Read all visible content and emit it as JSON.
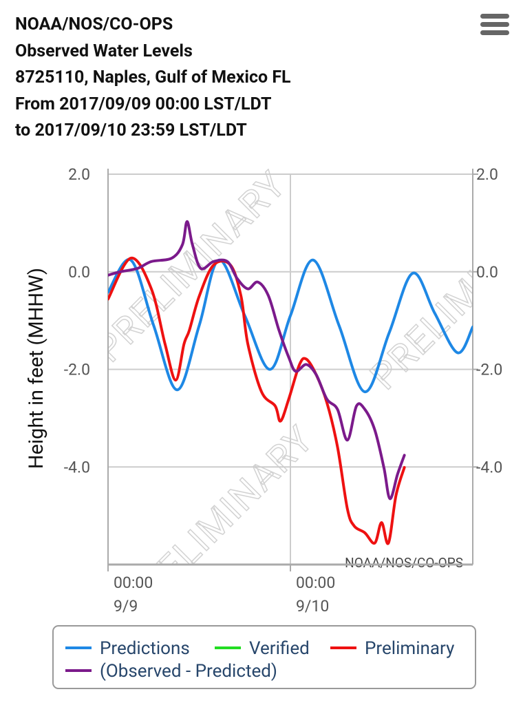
{
  "chart_data": {
    "type": "line",
    "title": [
      "NOAA/NOS/CO-OPS",
      "Observed Water Levels",
      "8725110, Naples, Gulf of Mexico FL",
      "From 2017/09/09 00:00 LST/LDT",
      "to 2017/09/10 23:59 LST/LDT"
    ],
    "ylabel": "Height in feet (MHHW)",
    "credit": "NOAA/NOS/CO-OPS",
    "watermark": "PRELIMINARY",
    "xlim": [
      0,
      48
    ],
    "xticks": [
      {
        "value": 0,
        "label": "00:00"
      },
      {
        "value": 24,
        "label": "00:00"
      }
    ],
    "xtick_dates": [
      "9/9",
      "9/10"
    ],
    "ylim": [
      -6,
      2
    ],
    "yticks": [
      {
        "value": 2,
        "label": "2.0"
      },
      {
        "value": 0,
        "label": "0.0"
      },
      {
        "value": -2,
        "label": "-2.0"
      },
      {
        "value": -4,
        "label": "-4.0"
      }
    ],
    "y2lim": [
      -6,
      2
    ],
    "y2ticks": [
      {
        "value": 2,
        "label": "2.0"
      },
      {
        "value": 0,
        "label": "0.0"
      },
      {
        "value": -2,
        "label": "-2.0"
      },
      {
        "value": -4,
        "label": "-4.0"
      }
    ],
    "grid": true,
    "series": [
      {
        "name": "Predictions",
        "color": "#1e88e5",
        "x": [
          0,
          3,
          6,
          9.1,
          12,
          14.6,
          18,
          21.3,
          24,
          27,
          30.4,
          33.8,
          37,
          40.1,
          43,
          46,
          48
        ],
        "values": [
          -0.42,
          0.24,
          -1.1,
          -2.42,
          -1.1,
          0.24,
          -0.9,
          -2.0,
          -0.9,
          0.24,
          -1.1,
          -2.46,
          -1.25,
          -0.03,
          -0.85,
          -1.66,
          -1.13
        ]
      },
      {
        "name": "Verified",
        "color": "#22dd22",
        "x": [],
        "values": []
      },
      {
        "name": "Preliminary",
        "color": "#ee1111",
        "x": [
          0,
          3,
          5.7,
          7.5,
          8.9,
          10,
          10.7,
          12,
          13.9,
          16.1,
          17.5,
          18.4,
          20.2,
          22,
          22.7,
          23.8,
          25.2,
          26.1,
          27.4,
          28.8,
          30.2,
          31.5,
          32.4,
          33.8,
          35.1,
          36,
          36.9,
          37.9,
          39
        ],
        "values": [
          -0.56,
          0.28,
          -0.35,
          -1.48,
          -2.22,
          -1.48,
          -1.2,
          -0.5,
          0.14,
          0.14,
          -0.5,
          -1.48,
          -2.46,
          -2.75,
          -3.06,
          -2.6,
          -1.9,
          -1.79,
          -2.11,
          -2.68,
          -3.59,
          -4.86,
          -5.21,
          -5.35,
          -5.56,
          -5.14,
          -5.56,
          -4.58,
          -4.01
        ]
      },
      {
        "name": "(Observed - Predicted)",
        "color": "#7b1a8b",
        "x": [
          0,
          1.6,
          3.9,
          5.7,
          8.4,
          9.8,
          10.4,
          11.1,
          12.2,
          13.9,
          15.7,
          17,
          18.4,
          19.7,
          21.1,
          22.5,
          23.8,
          24.7,
          26.1,
          27.4,
          28.8,
          30.2,
          31.5,
          32.7,
          33.8,
          35.1,
          36.3,
          37.1,
          38.1,
          39
        ],
        "values": [
          -0.07,
          0,
          0.07,
          0.21,
          0.28,
          0.56,
          1.03,
          0.56,
          0.07,
          0.21,
          0.21,
          -0.14,
          -0.35,
          -0.21,
          -0.49,
          -1.2,
          -1.76,
          -2.04,
          -1.9,
          -2.11,
          -2.61,
          -2.82,
          -3.45,
          -2.75,
          -2.82,
          -3.24,
          -4.01,
          -4.65,
          -4.15,
          -3.76
        ]
      }
    ]
  }
}
